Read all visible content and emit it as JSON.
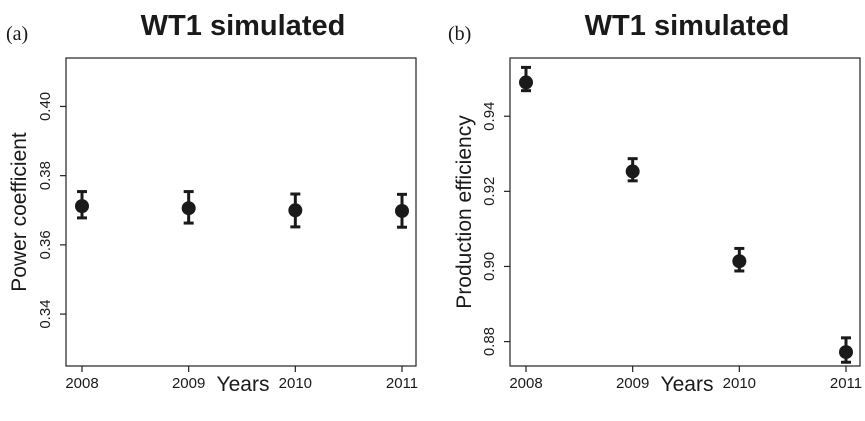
{
  "chart_data": [
    {
      "type": "scatter",
      "panel": "(a)",
      "title": "WT1 simulated",
      "xlabel": "Years",
      "ylabel": "Power coefficient",
      "x": [
        2008,
        2009,
        2010,
        2011
      ],
      "xticks": [
        "2008",
        "2009",
        "2010",
        "2011"
      ],
      "xlim": [
        2008,
        2011
      ],
      "ylim": [
        0.325,
        0.414
      ],
      "yticks": [
        0.34,
        0.36,
        0.38,
        0.4
      ],
      "ytick_labels": [
        "0.34",
        "0.36",
        "0.38",
        "0.40"
      ],
      "series": [
        {
          "values": [
            0.3712,
            0.3706,
            0.37,
            0.3698
          ],
          "lower": [
            0.3678,
            0.3663,
            0.3652,
            0.3651
          ],
          "upper": [
            0.3754,
            0.3754,
            0.3747,
            0.3746
          ]
        }
      ],
      "grid": false,
      "legend": "none"
    },
    {
      "type": "scatter",
      "panel": "(b)",
      "title": "WT1 simulated",
      "xlabel": "Years",
      "ylabel": "Production efficiency",
      "x": [
        2008,
        2009,
        2010,
        2011
      ],
      "xticks": [
        "2008",
        "2009",
        "2010",
        "2011"
      ],
      "xlim": [
        2008,
        2011
      ],
      "ylim": [
        0.8735,
        0.9555
      ],
      "yticks": [
        0.88,
        0.9,
        0.92,
        0.94
      ],
      "ytick_labels": [
        "0.88",
        "0.90",
        "0.92",
        "0.94"
      ],
      "series": [
        {
          "values": [
            0.949,
            0.9253,
            0.9014,
            0.8772
          ],
          "lower": [
            0.9468,
            0.9228,
            0.8988,
            0.8745
          ],
          "upper": [
            0.953,
            0.9287,
            0.9048,
            0.881
          ]
        }
      ],
      "grid": false,
      "legend": "none"
    }
  ]
}
